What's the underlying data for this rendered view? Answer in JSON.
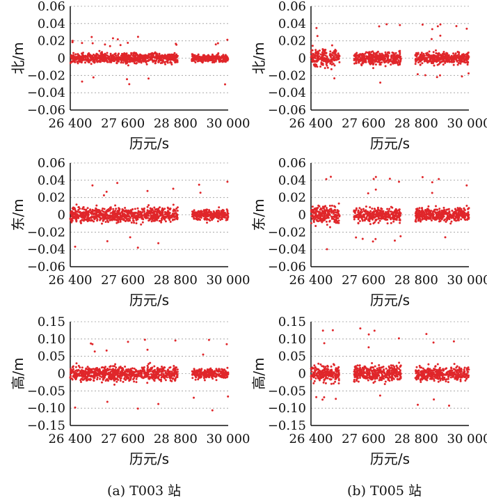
{
  "captions": [
    "(a) T003 站",
    "(b) T005 站"
  ],
  "chart_data": [
    {
      "type": "scatter",
      "panel": "a-north",
      "ylabel": "北/m",
      "xlabel": "历元/s",
      "x_ticks": [
        26400,
        27600,
        28800,
        30000
      ],
      "x_tick_labels": [
        "26 400",
        "27 600",
        "28 800",
        "30 000"
      ],
      "xlim": [
        26400,
        30000
      ],
      "ylim": [
        -0.06,
        0.06
      ],
      "y_ticks": [
        0.06,
        0.04,
        0.02,
        0,
        -0.02,
        -0.04,
        -0.06
      ],
      "y_tick_labels": [
        "0.06",
        "0.04",
        "0.02",
        "0",
        "−0.02",
        "−0.04",
        "−0.06"
      ],
      "grid": true,
      "color": "#e0262a",
      "segments": [
        [
          26400,
          28850,
          0.007
        ],
        [
          29170,
          30000,
          0.005
        ]
      ],
      "envelope": [
        -0.032,
        0.025
      ]
    },
    {
      "type": "scatter",
      "panel": "b-north",
      "ylabel": "北/m",
      "xlabel": "历元/s",
      "x_ticks": [
        26400,
        27600,
        28800,
        30000
      ],
      "x_tick_labels": [
        "26 400",
        "27 600",
        "28 800",
        "30 000"
      ],
      "xlim": [
        26400,
        30000
      ],
      "ylim": [
        -0.06,
        0.06
      ],
      "y_ticks": [
        0.06,
        0.04,
        0.02,
        0,
        -0.02,
        -0.04,
        -0.06
      ],
      "y_tick_labels": [
        "0.06",
        "0.04",
        "0.02",
        "0",
        "−0.02",
        "−0.04",
        "−0.06"
      ],
      "grid": true,
      "color": "#e0262a",
      "segments": [
        [
          26400,
          27050,
          0.012
        ],
        [
          27380,
          28450,
          0.009
        ],
        [
          28780,
          30000,
          0.008
        ]
      ],
      "envelope": [
        -0.032,
        0.04
      ]
    },
    {
      "type": "scatter",
      "panel": "a-east",
      "ylabel": "东/m",
      "xlabel": "历元/s",
      "x_ticks": [
        26400,
        27600,
        28800,
        30000
      ],
      "x_tick_labels": [
        "26 400",
        "27 600",
        "28 800",
        "30 000"
      ],
      "xlim": [
        26400,
        30000
      ],
      "ylim": [
        -0.06,
        0.06
      ],
      "y_ticks": [
        0.06,
        0.04,
        0.02,
        0,
        -0.02,
        -0.04,
        -0.06
      ],
      "y_tick_labels": [
        "0.06",
        "0.04",
        "0.02",
        "0",
        "−0.02",
        "−0.04",
        "−0.06"
      ],
      "grid": true,
      "color": "#e0262a",
      "segments": [
        [
          26400,
          28850,
          0.01
        ],
        [
          29180,
          30000,
          0.007
        ]
      ],
      "envelope": [
        -0.045,
        0.04
      ]
    },
    {
      "type": "scatter",
      "panel": "b-east",
      "ylabel": "东/m",
      "xlabel": "历元/s",
      "x_ticks": [
        26400,
        27600,
        28800,
        30000
      ],
      "x_tick_labels": [
        "26 400",
        "27 600",
        "28 800",
        "30 000"
      ],
      "xlim": [
        26400,
        30000
      ],
      "ylim": [
        -0.06,
        0.06
      ],
      "y_ticks": [
        0.06,
        0.04,
        0.02,
        0,
        -0.02,
        -0.04,
        -0.06
      ],
      "y_tick_labels": [
        "0.06",
        "0.04",
        "0.02",
        "0",
        "−0.02",
        "−0.04",
        "−0.06"
      ],
      "grid": true,
      "color": "#e0262a",
      "segments": [
        [
          26400,
          27050,
          0.014
        ],
        [
          27380,
          28450,
          0.01
        ],
        [
          28780,
          30000,
          0.009
        ]
      ],
      "envelope": [
        -0.045,
        0.045
      ]
    },
    {
      "type": "scatter",
      "panel": "a-up",
      "ylabel": "高/m",
      "xlabel": "历元/s",
      "x_ticks": [
        26400,
        27600,
        28800,
        30000
      ],
      "x_tick_labels": [
        "26 400",
        "27 600",
        "28 800",
        "30 000"
      ],
      "xlim": [
        26400,
        30000
      ],
      "ylim": [
        -0.15,
        0.15
      ],
      "y_ticks": [
        0.15,
        0.1,
        0.05,
        0,
        -0.05,
        -0.1,
        -0.15
      ],
      "y_tick_labels": [
        "0.15",
        "0.10",
        "0.05",
        "0",
        "−0.05",
        "−0.10",
        "−0.15"
      ],
      "grid": true,
      "color": "#e0262a",
      "segments": [
        [
          26400,
          28850,
          0.025
        ],
        [
          29180,
          30000,
          0.018
        ]
      ],
      "envelope": [
        -0.12,
        0.1
      ]
    },
    {
      "type": "scatter",
      "panel": "b-up",
      "ylabel": "高/m",
      "xlabel": "历元/s",
      "x_ticks": [
        26400,
        27600,
        28800,
        30000
      ],
      "x_tick_labels": [
        "26 400",
        "27 600",
        "28 800",
        "30 000"
      ],
      "xlim": [
        26400,
        30000
      ],
      "ylim": [
        -0.15,
        0.15
      ],
      "y_ticks": [
        0.15,
        0.1,
        0.05,
        0,
        -0.05,
        -0.1,
        -0.15
      ],
      "y_tick_labels": [
        "0.15",
        "0.10",
        "0.05",
        "0",
        "−0.05",
        "−0.10",
        "−0.15"
      ],
      "grid": true,
      "color": "#e0262a",
      "segments": [
        [
          26400,
          27050,
          0.03
        ],
        [
          27380,
          28450,
          0.027
        ],
        [
          28780,
          30000,
          0.025
        ]
      ],
      "envelope": [
        -0.11,
        0.135
      ]
    }
  ]
}
